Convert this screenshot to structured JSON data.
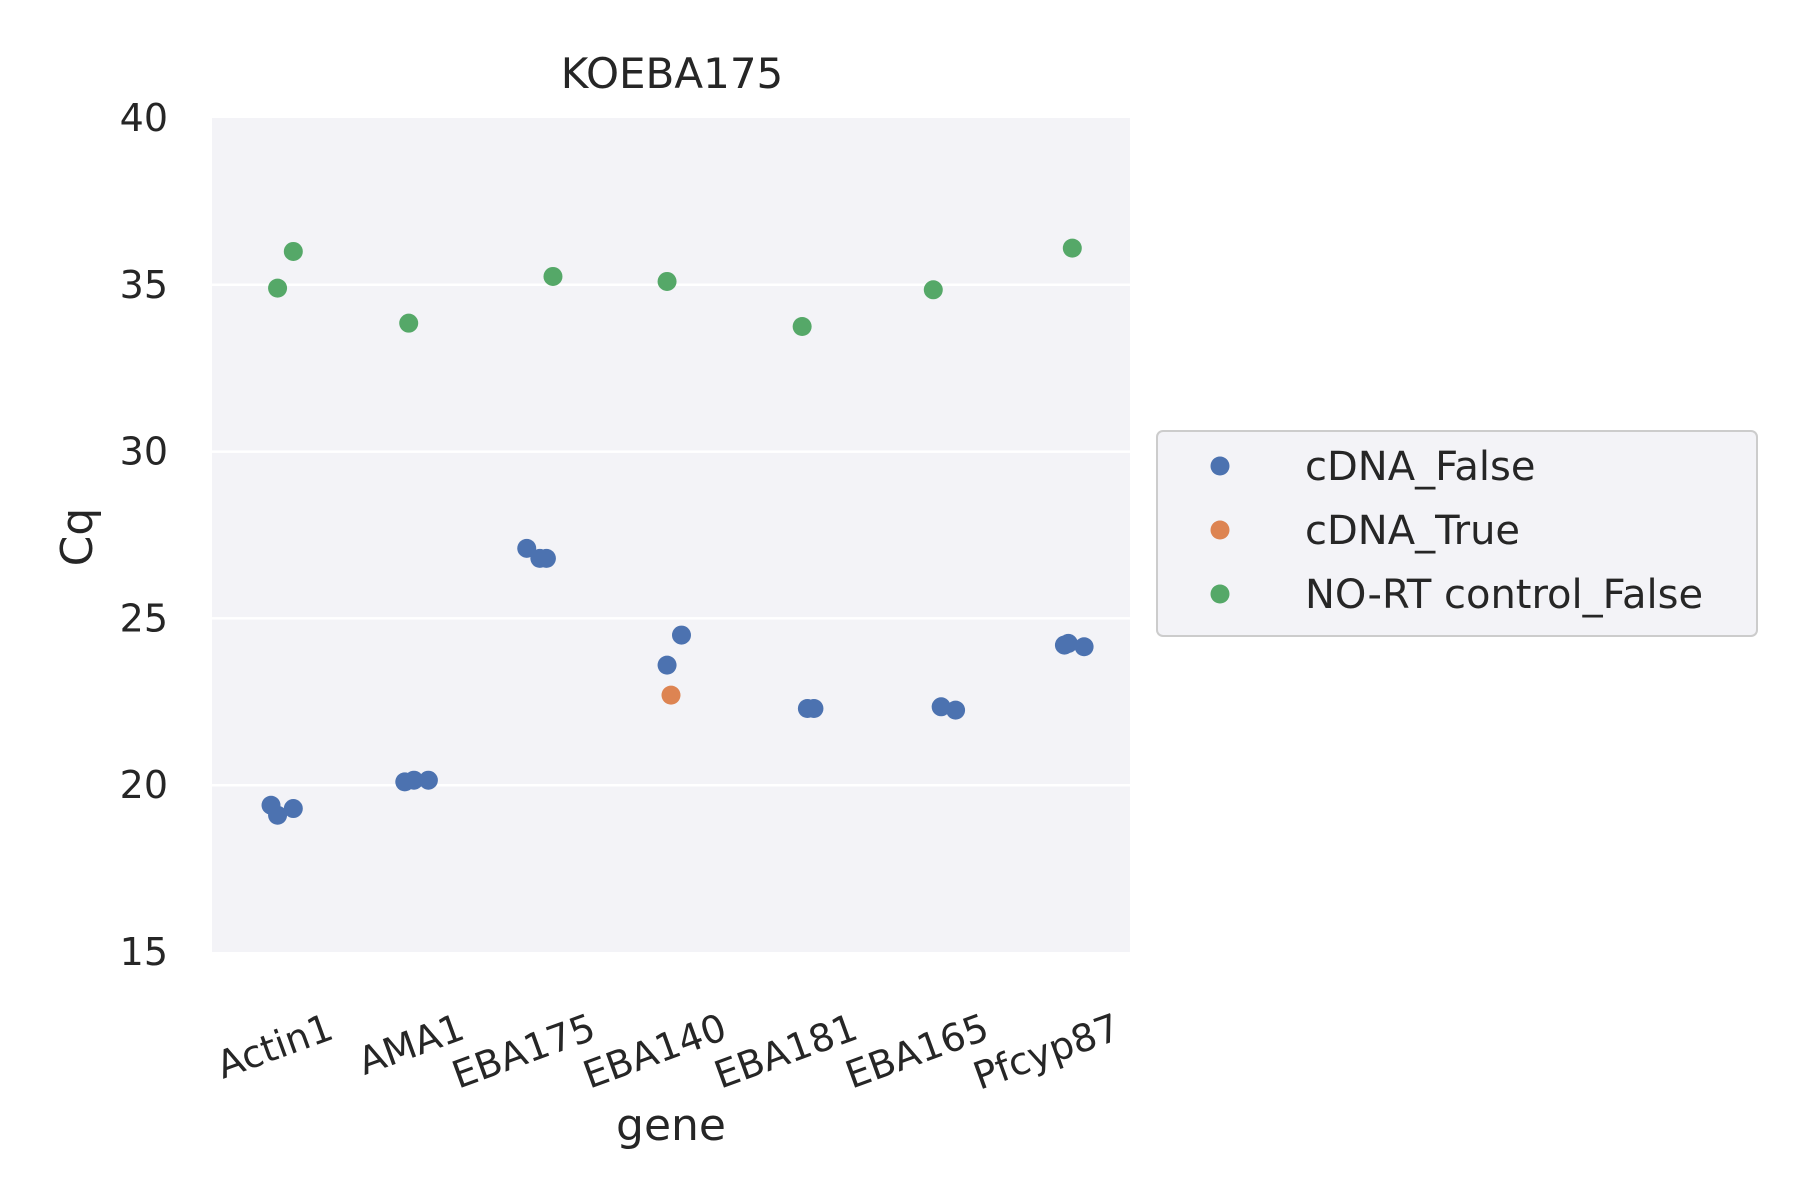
{
  "chart_data": {
    "type": "scatter",
    "title": "KOEBA175",
    "xlabel": "gene",
    "ylabel": "Cq",
    "ylim": [
      15,
      40
    ],
    "yticks": [
      15,
      20,
      25,
      30,
      35,
      40
    ],
    "categories": [
      "Actin1",
      "AMA1",
      "EBA175",
      "EBA140",
      "EBA181",
      "EBA165",
      "Pfcyp87"
    ],
    "grid": true,
    "legend_position": "right",
    "series": [
      {
        "name": "cDNA_False",
        "color": "#4c72b0",
        "points": [
          {
            "category": "Actin1",
            "jitter": -0.05,
            "y": 19.4
          },
          {
            "category": "Actin1",
            "jitter": 0.0,
            "y": 19.1
          },
          {
            "category": "Actin1",
            "jitter": 0.12,
            "y": 19.3
          },
          {
            "category": "AMA1",
            "jitter": -0.03,
            "y": 20.1
          },
          {
            "category": "AMA1",
            "jitter": 0.04,
            "y": 20.15
          },
          {
            "category": "AMA1",
            "jitter": 0.15,
            "y": 20.15
          },
          {
            "category": "EBA175",
            "jitter": -0.1,
            "y": 27.1
          },
          {
            "category": "EBA175",
            "jitter": 0.0,
            "y": 26.8
          },
          {
            "category": "EBA175",
            "jitter": 0.05,
            "y": 26.8
          },
          {
            "category": "EBA140",
            "jitter": -0.03,
            "y": 23.6
          },
          {
            "category": "EBA140",
            "jitter": 0.08,
            "y": 24.5
          },
          {
            "category": "EBA181",
            "jitter": 0.04,
            "y": 22.3
          },
          {
            "category": "EBA181",
            "jitter": 0.09,
            "y": 22.3
          },
          {
            "category": "EBA165",
            "jitter": 0.06,
            "y": 22.35
          },
          {
            "category": "EBA165",
            "jitter": 0.17,
            "y": 22.25
          },
          {
            "category": "Pfcyp87",
            "jitter": 0.0,
            "y": 24.2
          },
          {
            "category": "Pfcyp87",
            "jitter": 0.03,
            "y": 24.25
          },
          {
            "category": "Pfcyp87",
            "jitter": 0.15,
            "y": 24.15
          }
        ]
      },
      {
        "name": "cDNA_True",
        "color": "#dd8452",
        "points": [
          {
            "category": "EBA140",
            "jitter": 0.0,
            "y": 22.7
          }
        ]
      },
      {
        "name": "NO-RT control_False",
        "color": "#55a868",
        "points": [
          {
            "category": "Actin1",
            "jitter": 0.0,
            "y": 34.9
          },
          {
            "category": "Actin1",
            "jitter": 0.12,
            "y": 36.0
          },
          {
            "category": "AMA1",
            "jitter": 0.0,
            "y": 33.85
          },
          {
            "category": "EBA175",
            "jitter": 0.1,
            "y": 35.25
          },
          {
            "category": "EBA140",
            "jitter": -0.03,
            "y": 35.1
          },
          {
            "category": "EBA181",
            "jitter": 0.0,
            "y": 33.75
          },
          {
            "category": "EBA165",
            "jitter": 0.0,
            "y": 34.85
          },
          {
            "category": "Pfcyp87",
            "jitter": 0.06,
            "y": 36.1
          }
        ]
      }
    ]
  }
}
